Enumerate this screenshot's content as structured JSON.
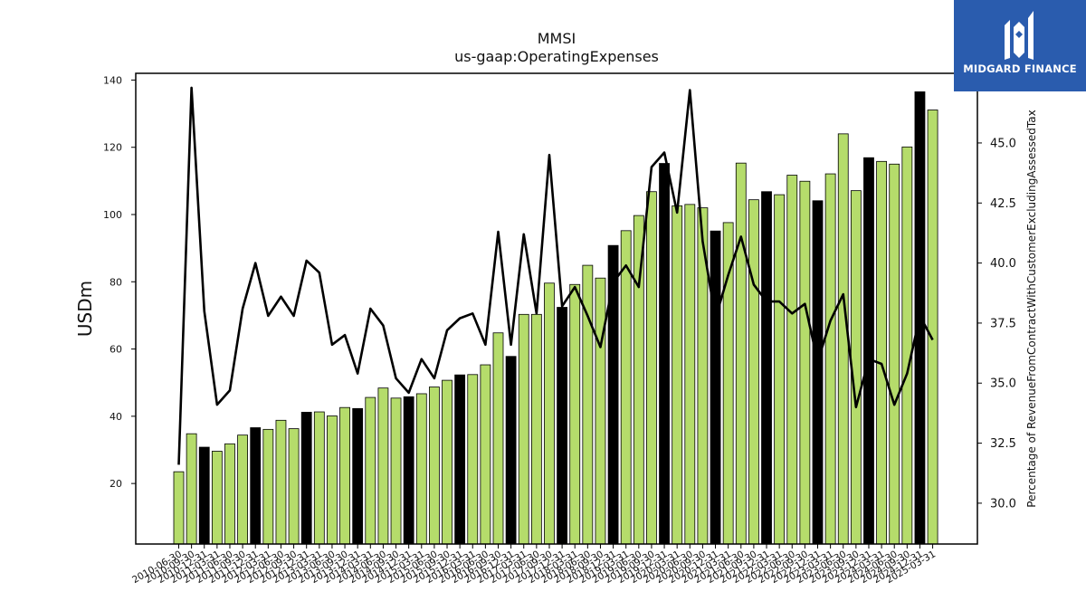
{
  "chart_data": {
    "type": "bar",
    "title": "MMSI",
    "subtitle": "us-gaap:OperatingExpenses",
    "ylabel": "USDm",
    "y2label": "Percentage of RevenueFromContractWithCustomerExcludingAssessedTax",
    "ylim": [
      2,
      142
    ],
    "y2lim": [
      28.3,
      47.9
    ],
    "yticks": [
      20,
      40,
      60,
      80,
      100,
      120,
      140
    ],
    "y2ticks": [
      30.0,
      32.5,
      35.0,
      37.5,
      40.0,
      42.5,
      45.0,
      47.5
    ],
    "grid": false,
    "legend": "none",
    "colors": {
      "quarter": "#b5dc6b",
      "fiscal_year": "#000000",
      "line": "#000000"
    },
    "categories": [
      "2010-06-30",
      "2010-09-30",
      "2010-12-31",
      "2011-03-31",
      "2011-06-30",
      "2011-09-30",
      "2011-12-31",
      "2012-03-31",
      "2012-06-30",
      "2012-09-30",
      "2012-12-31",
      "2013-03-31",
      "2013-06-30",
      "2013-09-30",
      "2013-12-31",
      "2014-03-31",
      "2014-06-30",
      "2014-09-30",
      "2014-12-31",
      "2015-03-31",
      "2015-06-30",
      "2015-09-30",
      "2015-12-31",
      "2016-03-31",
      "2016-06-30",
      "2016-09-30",
      "2016-12-31",
      "2017-03-31",
      "2017-06-30",
      "2017-09-30",
      "2017-12-31",
      "2018-03-31",
      "2018-06-30",
      "2018-09-30",
      "2018-12-31",
      "2019-03-31",
      "2019-06-30",
      "2019-09-30",
      "2019-12-31",
      "2020-03-31",
      "2020-06-30",
      "2020-09-30",
      "2020-12-31",
      "2021-03-31",
      "2021-06-30",
      "2021-09-30",
      "2021-12-31",
      "2022-03-31",
      "2022-06-30",
      "2022-09-30",
      "2022-12-31",
      "2023-03-31",
      "2023-06-30",
      "2023-09-30",
      "2023-12-31",
      "2024-03-31",
      "2024-06-30",
      "2024-09-30",
      "2024-12-31",
      "2025-03-31"
    ],
    "series": [
      {
        "kind": "bar",
        "values": [
          23.5,
          34.8,
          30.8,
          29.6,
          31.8,
          34.4,
          36.6,
          36.1,
          38.8,
          36.3,
          41.2,
          41.3,
          40.1,
          42.6,
          42.3,
          45.6,
          48.4,
          45.4,
          45.8,
          46.7,
          48.7,
          50.7,
          52.3,
          52.4,
          55.3,
          64.8,
          57.8,
          70.3,
          70.3,
          79.6,
          72.4,
          79.2,
          84.9,
          81.1,
          90.8,
          95.2,
          99.7,
          106.8,
          115.2,
          102.6,
          103.0,
          102.0,
          95.1,
          97.6,
          115.3,
          104.4,
          106.8,
          105.9,
          111.7,
          109.9,
          104.1,
          112.1,
          124.0,
          107.1,
          116.9,
          115.8,
          115.0,
          120.1,
          136.5,
          131.1
        ],
        "highlight": [
          false,
          false,
          true,
          false,
          false,
          false,
          true,
          false,
          false,
          false,
          true,
          false,
          false,
          false,
          true,
          false,
          false,
          false,
          true,
          false,
          false,
          false,
          true,
          false,
          false,
          false,
          true,
          false,
          false,
          false,
          true,
          false,
          false,
          false,
          true,
          false,
          false,
          false,
          true,
          false,
          false,
          false,
          true,
          false,
          false,
          false,
          true,
          false,
          false,
          false,
          true,
          false,
          false,
          false,
          true,
          false,
          false,
          false,
          true,
          false
        ]
      },
      {
        "kind": "line",
        "axis": "right",
        "values": [
          31.6,
          47.3,
          38.0,
          34.1,
          34.7,
          38.1,
          40.0,
          37.8,
          38.6,
          37.8,
          40.1,
          39.6,
          36.6,
          37.0,
          35.4,
          38.1,
          37.4,
          35.2,
          34.6,
          36.0,
          35.2,
          37.2,
          37.7,
          37.9,
          36.6,
          41.3,
          36.6,
          41.2,
          37.9,
          44.5,
          38.2,
          39.0,
          37.8,
          36.5,
          39.2,
          39.9,
          39.0,
          44.0,
          44.6,
          42.1,
          47.2,
          40.9,
          37.7,
          39.5,
          41.1,
          39.1,
          38.4,
          38.4,
          37.9,
          38.3,
          35.9,
          37.6,
          38.7,
          34.0,
          36.0,
          35.8,
          34.1,
          35.4,
          37.8,
          36.8
        ]
      }
    ]
  },
  "logo": {
    "text": "MIDGARD FINANCE"
  }
}
